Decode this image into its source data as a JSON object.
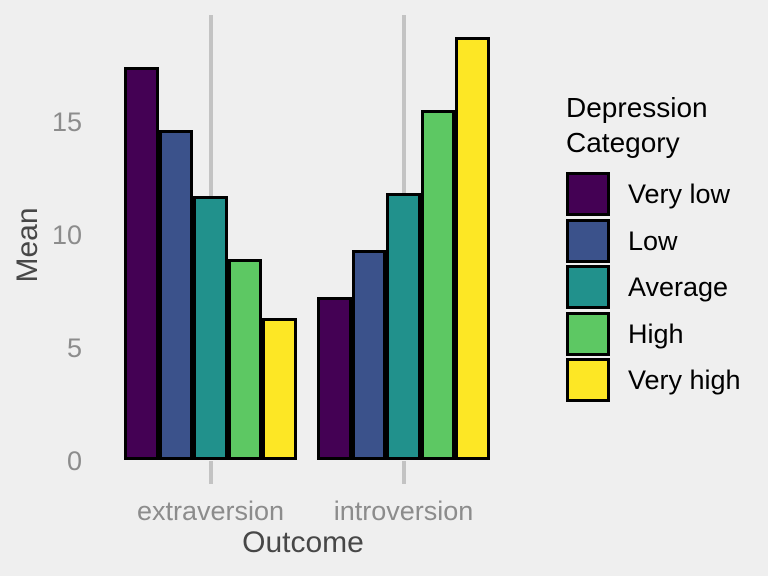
{
  "chart_data": {
    "type": "bar",
    "title": "",
    "xlabel": "Outcome",
    "ylabel": "Mean",
    "categories": [
      "extraversion",
      "introversion"
    ],
    "series": [
      {
        "name": "Very low",
        "color": "#440154",
        "values": [
          17.4,
          7.2
        ]
      },
      {
        "name": "Low",
        "color": "#3B528B",
        "values": [
          14.6,
          9.3
        ]
      },
      {
        "name": "Average",
        "color": "#21918C",
        "values": [
          11.7,
          11.8
        ]
      },
      {
        "name": "High",
        "color": "#5DC863",
        "values": [
          8.9,
          15.5
        ]
      },
      {
        "name": "Very high",
        "color": "#FDE725",
        "values": [
          6.3,
          18.7
        ]
      }
    ],
    "yticks": [
      "0",
      "5",
      "10",
      "15"
    ],
    "ytick_values": [
      0,
      5,
      10,
      15
    ],
    "ylim": [
      0,
      19.7
    ],
    "legend_title": "Depression Category",
    "legend_position": "right",
    "grid": "vertical-major-only",
    "style": {
      "background": "#EFEFEF",
      "gridline_color": "#C3C3C3",
      "bar_border_color": "#000000",
      "tick_label_color": "#8C8C8C",
      "axis_title_color": "#474747",
      "legend_text_color": "#000000"
    }
  }
}
